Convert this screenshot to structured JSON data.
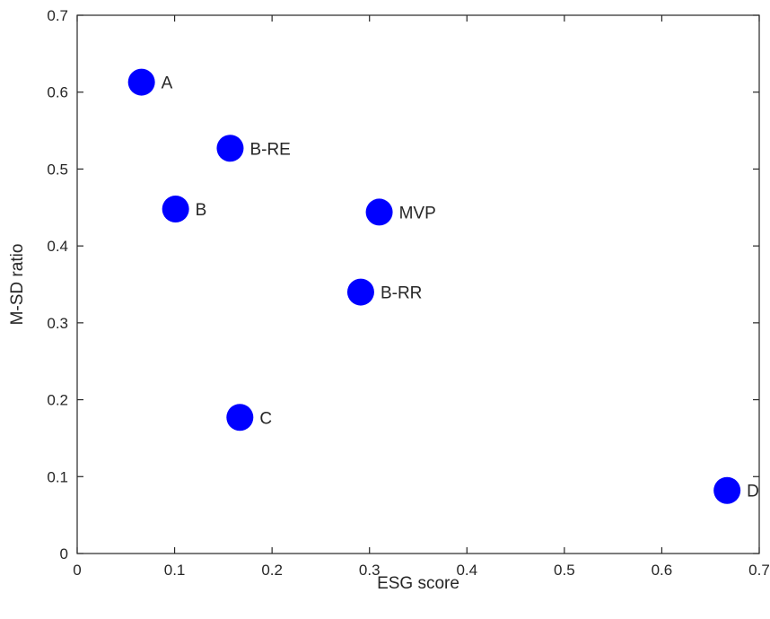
{
  "chart_data": {
    "type": "scatter",
    "title": "",
    "xlabel": "ESG score",
    "ylabel": "M-SD ratio",
    "xlim": [
      0,
      0.7
    ],
    "ylim": [
      0,
      0.7
    ],
    "xticks": [
      "0",
      "0.1",
      "0.2",
      "0.3",
      "0.4",
      "0.5",
      "0.6",
      "0.7"
    ],
    "yticks": [
      "0",
      "0.1",
      "0.2",
      "0.3",
      "0.4",
      "0.5",
      "0.6",
      "0.7"
    ],
    "grid": false,
    "legend": "none",
    "marker_color": "#0000FF",
    "points": [
      {
        "label": "A",
        "x": 0.066,
        "y": 0.613
      },
      {
        "label": "B-RE",
        "x": 0.157,
        "y": 0.527
      },
      {
        "label": "B",
        "x": 0.101,
        "y": 0.448
      },
      {
        "label": "MVP",
        "x": 0.31,
        "y": 0.444
      },
      {
        "label": "B-RR",
        "x": 0.291,
        "y": 0.34
      },
      {
        "label": "C",
        "x": 0.167,
        "y": 0.177
      },
      {
        "label": "D",
        "x": 0.667,
        "y": 0.082
      }
    ]
  }
}
